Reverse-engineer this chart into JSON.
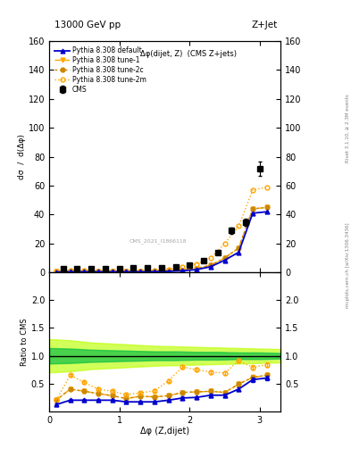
{
  "title_top": "13000 GeV pp",
  "title_right": "Z+Jet",
  "plot_title": "Δφ(dijet, Z)  (CMS Z+jets)",
  "watermark": "CMS_2021_I1866118",
  "xlabel": "Δφ (Z,dijet)",
  "ylabel_main": "dσ/d(Δφ)",
  "ylabel_ratio": "Ratio to CMS",
  "right_label": "Rivet 3.1.10, ≥ 2.3M events",
  "right_label2": "mcplots.cern.ch [arXiv:1306.3436]",
  "ylim_main": [
    0,
    160
  ],
  "ylim_ratio": [
    0.0,
    2.5
  ],
  "xlim": [
    0.0,
    3.3
  ],
  "cms_x": [
    0.2,
    0.4,
    0.6,
    0.8,
    1.0,
    1.2,
    1.4,
    1.6,
    1.8,
    2.0,
    2.2,
    2.4,
    2.6,
    2.8,
    3.0
  ],
  "cms_y": [
    2.5,
    2.5,
    2.5,
    2.5,
    2.5,
    3.0,
    3.0,
    3.5,
    4.0,
    5.0,
    8.0,
    14.0,
    29.0,
    35.0,
    72.0
  ],
  "cms_yerr": [
    0.3,
    0.3,
    0.3,
    0.3,
    0.3,
    0.3,
    0.3,
    0.4,
    0.5,
    0.6,
    0.8,
    1.2,
    2.0,
    2.5,
    5.0
  ],
  "py_x": [
    0.1,
    0.3,
    0.5,
    0.7,
    0.9,
    1.1,
    1.3,
    1.5,
    1.7,
    1.9,
    2.1,
    2.3,
    2.5,
    2.7,
    2.9,
    3.1
  ],
  "py_default_y": [
    0.3,
    0.5,
    0.5,
    0.5,
    0.5,
    0.5,
    0.5,
    0.6,
    0.8,
    1.2,
    2.0,
    4.0,
    8.5,
    14.0,
    41.0,
    42.0
  ],
  "py_tune1_y": [
    0.5,
    1.0,
    0.9,
    0.8,
    0.7,
    0.7,
    0.8,
    0.9,
    1.1,
    1.7,
    2.8,
    5.0,
    10.0,
    17.0,
    44.0,
    45.0
  ],
  "py_tune2c_y": [
    0.5,
    1.0,
    0.9,
    0.8,
    0.7,
    0.7,
    0.8,
    0.9,
    1.1,
    1.7,
    2.8,
    5.0,
    10.0,
    17.0,
    44.0,
    45.0
  ],
  "py_tune2m_y": [
    0.5,
    1.5,
    1.3,
    1.0,
    0.9,
    0.9,
    1.0,
    1.3,
    2.2,
    4.0,
    6.0,
    10.0,
    20.0,
    32.0,
    57.0,
    59.0
  ],
  "ratio_default_x": [
    0.1,
    0.3,
    0.5,
    0.7,
    0.9,
    1.1,
    1.3,
    1.5,
    1.7,
    1.9,
    2.1,
    2.3,
    2.5,
    2.7,
    2.9,
    3.1
  ],
  "ratio_default_y": [
    0.12,
    0.2,
    0.2,
    0.2,
    0.2,
    0.17,
    0.17,
    0.17,
    0.2,
    0.24,
    0.25,
    0.29,
    0.29,
    0.4,
    0.57,
    0.6
  ],
  "ratio_tune1_y": [
    0.2,
    0.4,
    0.36,
    0.32,
    0.28,
    0.23,
    0.27,
    0.26,
    0.28,
    0.34,
    0.35,
    0.36,
    0.34,
    0.49,
    0.61,
    0.65
  ],
  "ratio_tune2c_y": [
    0.2,
    0.4,
    0.36,
    0.32,
    0.28,
    0.23,
    0.27,
    0.26,
    0.28,
    0.34,
    0.35,
    0.36,
    0.34,
    0.49,
    0.61,
    0.65
  ],
  "ratio_tune2m_y": [
    0.2,
    0.65,
    0.52,
    0.4,
    0.36,
    0.3,
    0.33,
    0.37,
    0.55,
    0.8,
    0.75,
    0.71,
    0.69,
    0.91,
    0.79,
    0.84
  ],
  "ratio_err": [
    0.06,
    0.06,
    0.06,
    0.06,
    0.06,
    0.06,
    0.06,
    0.06,
    0.07,
    0.07,
    0.07,
    0.08,
    0.08,
    0.09,
    0.1,
    0.11
  ],
  "color_default": "#0000cc",
  "color_tune1": "#ffa500",
  "color_tune2c": "#cc8800",
  "color_tune2m": "#ffa500",
  "color_cms": "#000000",
  "band_inner_color": "#00bb44",
  "band_outer_color": "#bbff00",
  "band_inner_alpha": 0.65,
  "band_outer_alpha": 0.65,
  "band_x": [
    0.0,
    0.3,
    0.6,
    0.9,
    1.2,
    1.5,
    1.8,
    2.1,
    2.4,
    2.7,
    3.0,
    3.3
  ],
  "band_outer_lo": [
    0.7,
    0.72,
    0.76,
    0.78,
    0.8,
    0.82,
    0.83,
    0.84,
    0.85,
    0.86,
    0.87,
    0.88
  ],
  "band_outer_hi": [
    1.3,
    1.28,
    1.24,
    1.22,
    1.2,
    1.18,
    1.17,
    1.16,
    1.15,
    1.14,
    1.13,
    1.12
  ],
  "band_inner_lo": [
    0.86,
    0.87,
    0.89,
    0.9,
    0.91,
    0.92,
    0.92,
    0.93,
    0.93,
    0.94,
    0.94,
    0.95
  ],
  "band_inner_hi": [
    1.14,
    1.13,
    1.11,
    1.1,
    1.09,
    1.08,
    1.08,
    1.07,
    1.07,
    1.06,
    1.06,
    1.05
  ],
  "yticks_main": [
    0,
    20,
    40,
    60,
    80,
    100,
    120,
    140,
    160
  ],
  "yticks_ratio": [
    0.5,
    1.0,
    1.5,
    2.0
  ],
  "xticks": [
    0,
    1,
    2,
    3
  ]
}
